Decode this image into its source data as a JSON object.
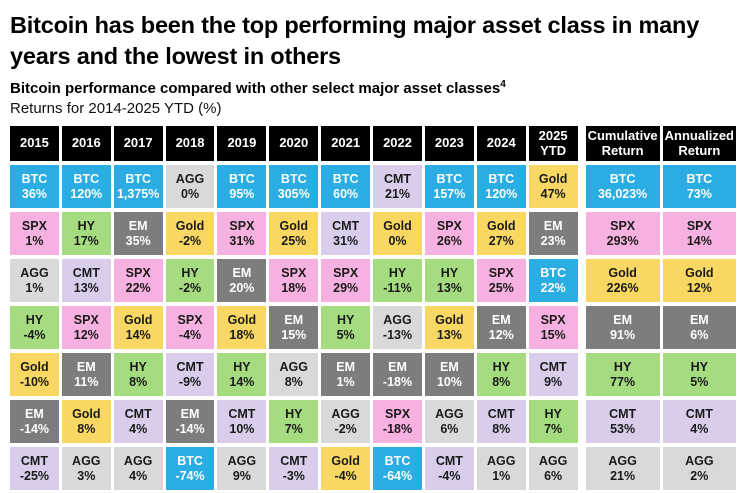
{
  "header": {
    "title": "Bitcoin has been the top performing major asset class in many years and the lowest in others",
    "subtitle": "Bitcoin performance compared with other select major asset classes",
    "subtitle_sup": "4",
    "caption": "Returns for 2014-2025 YTD (%)"
  },
  "colors": {
    "BTC": "#29ade2",
    "SPX": "#f7b1e1",
    "AGG": "#d9d9d9",
    "HY": "#a5dc7f",
    "Gold": "#f8d862",
    "EM": "#7d7d7d",
    "CMT": "#d9cdeb",
    "header_bg": "#000000",
    "header_text": "#ffffff",
    "dark_text": "#1a1a1a",
    "light_text": "#ffffff"
  },
  "white_text_assets": [
    "BTC",
    "EM"
  ],
  "chart_data": {
    "type": "table",
    "title": "Bitcoin performance compared with other select major asset classes",
    "columns": [
      "2015",
      "2016",
      "2017",
      "2018",
      "2019",
      "2020",
      "2021",
      "2022",
      "2023",
      "2024",
      "2025 YTD",
      "Cumulative Return",
      "Annualized Return"
    ],
    "rows": [
      [
        {
          "asset": "BTC",
          "value": "36%"
        },
        {
          "asset": "BTC",
          "value": "120%"
        },
        {
          "asset": "BTC",
          "value": "1,375%"
        },
        {
          "asset": "AGG",
          "value": "0%"
        },
        {
          "asset": "BTC",
          "value": "95%"
        },
        {
          "asset": "BTC",
          "value": "305%"
        },
        {
          "asset": "BTC",
          "value": "60%"
        },
        {
          "asset": "CMT",
          "value": "21%"
        },
        {
          "asset": "BTC",
          "value": "157%"
        },
        {
          "asset": "BTC",
          "value": "120%"
        },
        {
          "asset": "Gold",
          "value": "47%"
        },
        {
          "asset": "BTC",
          "value": "36,023%"
        },
        {
          "asset": "BTC",
          "value": "73%"
        }
      ],
      [
        {
          "asset": "SPX",
          "value": "1%"
        },
        {
          "asset": "HY",
          "value": "17%"
        },
        {
          "asset": "EM",
          "value": "35%"
        },
        {
          "asset": "Gold",
          "value": "-2%"
        },
        {
          "asset": "SPX",
          "value": "31%"
        },
        {
          "asset": "Gold",
          "value": "25%"
        },
        {
          "asset": "CMT",
          "value": "31%"
        },
        {
          "asset": "Gold",
          "value": "0%"
        },
        {
          "asset": "SPX",
          "value": "26%"
        },
        {
          "asset": "Gold",
          "value": "27%"
        },
        {
          "asset": "EM",
          "value": "23%"
        },
        {
          "asset": "SPX",
          "value": "293%"
        },
        {
          "asset": "SPX",
          "value": "14%"
        }
      ],
      [
        {
          "asset": "AGG",
          "value": "1%"
        },
        {
          "asset": "CMT",
          "value": "13%"
        },
        {
          "asset": "SPX",
          "value": "22%"
        },
        {
          "asset": "HY",
          "value": "-2%"
        },
        {
          "asset": "EM",
          "value": "20%"
        },
        {
          "asset": "SPX",
          "value": "18%"
        },
        {
          "asset": "SPX",
          "value": "29%"
        },
        {
          "asset": "HY",
          "value": "-11%"
        },
        {
          "asset": "HY",
          "value": "13%"
        },
        {
          "asset": "SPX",
          "value": "25%"
        },
        {
          "asset": "BTC",
          "value": "22%"
        },
        {
          "asset": "Gold",
          "value": "226%"
        },
        {
          "asset": "Gold",
          "value": "12%"
        }
      ],
      [
        {
          "asset": "HY",
          "value": "-4%"
        },
        {
          "asset": "SPX",
          "value": "12%"
        },
        {
          "asset": "Gold",
          "value": "14%"
        },
        {
          "asset": "SPX",
          "value": "-4%"
        },
        {
          "asset": "Gold",
          "value": "18%"
        },
        {
          "asset": "EM",
          "value": "15%"
        },
        {
          "asset": "HY",
          "value": "5%"
        },
        {
          "asset": "AGG",
          "value": "-13%"
        },
        {
          "asset": "Gold",
          "value": "13%"
        },
        {
          "asset": "EM",
          "value": "12%"
        },
        {
          "asset": "SPX",
          "value": "15%"
        },
        {
          "asset": "EM",
          "value": "91%"
        },
        {
          "asset": "EM",
          "value": "6%"
        }
      ],
      [
        {
          "asset": "Gold",
          "value": "-10%"
        },
        {
          "asset": "EM",
          "value": "11%"
        },
        {
          "asset": "HY",
          "value": "8%"
        },
        {
          "asset": "CMT",
          "value": "-9%"
        },
        {
          "asset": "HY",
          "value": "14%"
        },
        {
          "asset": "AGG",
          "value": "8%"
        },
        {
          "asset": "EM",
          "value": "1%"
        },
        {
          "asset": "EM",
          "value": "-18%"
        },
        {
          "asset": "EM",
          "value": "10%"
        },
        {
          "asset": "HY",
          "value": "8%"
        },
        {
          "asset": "CMT",
          "value": "9%"
        },
        {
          "asset": "HY",
          "value": "77%"
        },
        {
          "asset": "HY",
          "value": "5%"
        }
      ],
      [
        {
          "asset": "EM",
          "value": "-14%"
        },
        {
          "asset": "Gold",
          "value": "8%"
        },
        {
          "asset": "CMT",
          "value": "4%"
        },
        {
          "asset": "EM",
          "value": "-14%"
        },
        {
          "asset": "CMT",
          "value": "10%"
        },
        {
          "asset": "HY",
          "value": "7%"
        },
        {
          "asset": "AGG",
          "value": "-2%"
        },
        {
          "asset": "SPX",
          "value": "-18%"
        },
        {
          "asset": "AGG",
          "value": "6%"
        },
        {
          "asset": "CMT",
          "value": "8%"
        },
        {
          "asset": "HY",
          "value": "7%"
        },
        {
          "asset": "CMT",
          "value": "53%"
        },
        {
          "asset": "CMT",
          "value": "4%"
        }
      ],
      [
        {
          "asset": "CMT",
          "value": "-25%"
        },
        {
          "asset": "AGG",
          "value": "3%"
        },
        {
          "asset": "AGG",
          "value": "4%"
        },
        {
          "asset": "BTC",
          "value": "-74%"
        },
        {
          "asset": "AGG",
          "value": "9%"
        },
        {
          "asset": "CMT",
          "value": "-3%"
        },
        {
          "asset": "Gold",
          "value": "-4%"
        },
        {
          "asset": "BTC",
          "value": "-64%"
        },
        {
          "asset": "CMT",
          "value": "-4%"
        },
        {
          "asset": "AGG",
          "value": "1%"
        },
        {
          "asset": "AGG",
          "value": "6%"
        },
        {
          "asset": "AGG",
          "value": "21%"
        },
        {
          "asset": "AGG",
          "value": "2%"
        }
      ]
    ]
  }
}
